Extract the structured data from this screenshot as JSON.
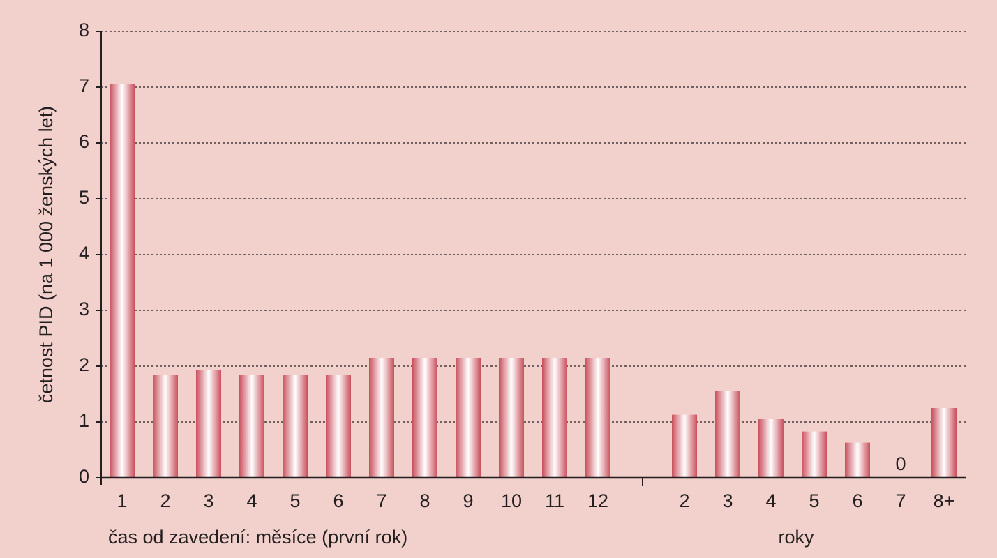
{
  "chart_data": {
    "type": "bar",
    "ylabel": "četnost PID (na 1 000 ženských let)",
    "xlabel": "čas od zavedení: měsíce (první rok)",
    "xlabel_years": "roky",
    "categories": [
      "1",
      "2",
      "3",
      "4",
      "5",
      "6",
      "7",
      "8",
      "9",
      "10",
      "11",
      "12",
      null,
      "2",
      "3",
      "4",
      "5",
      "6",
      "7",
      "8+"
    ],
    "values": [
      7.05,
      1.85,
      1.93,
      1.85,
      1.85,
      1.85,
      2.15,
      2.15,
      2.15,
      2.15,
      2.15,
      2.15,
      null,
      1.13,
      1.55,
      1.05,
      0.83,
      0.63,
      0,
      1.25
    ],
    "color": "#c9505c",
    "ylim": [
      0,
      8
    ],
    "yticks": [
      0,
      1,
      2,
      3,
      4,
      5,
      6,
      7,
      8
    ],
    "grid": true
  }
}
